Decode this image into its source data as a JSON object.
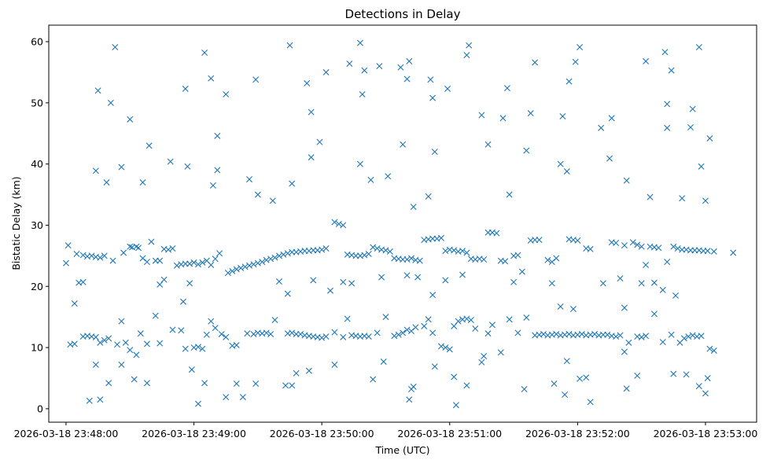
{
  "chart_data": {
    "type": "scatter",
    "title": "Detections in Delay",
    "xlabel": "Time (UTC)",
    "ylabel": "Bistatic Delay (km)",
    "x_unit": "seconds after 2026-03-18 23:48:00",
    "xlim": [
      -8.1,
      324
    ],
    "ylim": [
      -2.2,
      62.7
    ],
    "marker": "x",
    "color": "#1f77b4",
    "grid": false,
    "xticks": [
      {
        "value": 0,
        "label": "2026-03-18 23:48:00"
      },
      {
        "value": 60,
        "label": "2026-03-18 23:49:00"
      },
      {
        "value": 120,
        "label": "2026-03-18 23:50:00"
      },
      {
        "value": 180,
        "label": "2026-03-18 23:51:00"
      },
      {
        "value": 240,
        "label": "2026-03-18 23:52:00"
      },
      {
        "value": 300,
        "label": "2026-03-18 23:53:00"
      }
    ],
    "yticks": [
      {
        "value": 0,
        "label": "0"
      },
      {
        "value": 10,
        "label": "10"
      },
      {
        "value": 20,
        "label": "20"
      },
      {
        "value": 30,
        "label": "30"
      },
      {
        "value": 40,
        "label": "40"
      },
      {
        "value": 50,
        "label": "50"
      },
      {
        "value": 60,
        "label": "60"
      }
    ],
    "points": [
      [
        23,
        59.1
      ],
      [
        15,
        52
      ],
      [
        21,
        50
      ],
      [
        30,
        47.3
      ],
      [
        39,
        43
      ],
      [
        49,
        40.4
      ],
      [
        56,
        52.3
      ],
      [
        65,
        58.2
      ],
      [
        68,
        54
      ],
      [
        75,
        51.4
      ],
      [
        71,
        44.6
      ],
      [
        89,
        53.8
      ],
      [
        105,
        59.4
      ],
      [
        113,
        53.2
      ],
      [
        115,
        48.5
      ],
      [
        122,
        55
      ],
      [
        133,
        56.4
      ],
      [
        138,
        59.8
      ],
      [
        140,
        55.3
      ],
      [
        139,
        51.4
      ],
      [
        147,
        56
      ],
      [
        157,
        55.8
      ],
      [
        161,
        56.8
      ],
      [
        160,
        53.9
      ],
      [
        171,
        53.8
      ],
      [
        172,
        50.8
      ],
      [
        179,
        52.3
      ],
      [
        189,
        59.4
      ],
      [
        188,
        57.8
      ],
      [
        195,
        48
      ],
      [
        198,
        43.2
      ],
      [
        207,
        52.4
      ],
      [
        205,
        47.5
      ],
      [
        220,
        56.6
      ],
      [
        218,
        48.3
      ],
      [
        236,
        53.5
      ],
      [
        233,
        47.8
      ],
      [
        241,
        59.1
      ],
      [
        239,
        56.7
      ],
      [
        256,
        47.5
      ],
      [
        272,
        56.8
      ],
      [
        281,
        58.3
      ],
      [
        284,
        55.3
      ],
      [
        282,
        49.8
      ],
      [
        297,
        59.1
      ],
      [
        294,
        49
      ],
      [
        293,
        46
      ],
      [
        302,
        44.2
      ],
      [
        19,
        37
      ],
      [
        36,
        37
      ],
      [
        14,
        38.9
      ],
      [
        26,
        39.5
      ],
      [
        57,
        39.6
      ],
      [
        69,
        36.5
      ],
      [
        71,
        39
      ],
      [
        86,
        37.5
      ],
      [
        90,
        35
      ],
      [
        97,
        34
      ],
      [
        106,
        36.8
      ],
      [
        115,
        41.1
      ],
      [
        119,
        43.6
      ],
      [
        138,
        40
      ],
      [
        143,
        37.4
      ],
      [
        151,
        38
      ],
      [
        158,
        43.2
      ],
      [
        163,
        33
      ],
      [
        170,
        34.7
      ],
      [
        173,
        42
      ],
      [
        208,
        35
      ],
      [
        216,
        42.2
      ],
      [
        232,
        40
      ],
      [
        235,
        38.8
      ],
      [
        255,
        40.9
      ],
      [
        251,
        45.9
      ],
      [
        263,
        37.3
      ],
      [
        274,
        34.6
      ],
      [
        282,
        45.9
      ],
      [
        289,
        34.4
      ],
      [
        298,
        39.6
      ],
      [
        300,
        34
      ],
      [
        11,
        1.3
      ],
      [
        16,
        1.5
      ],
      [
        14,
        7.2
      ],
      [
        20,
        4.2
      ],
      [
        26,
        7.2
      ],
      [
        32,
        4.8
      ],
      [
        38,
        4.2
      ],
      [
        62,
        0.8
      ],
      [
        65,
        4.2
      ],
      [
        59,
        6.4
      ],
      [
        75,
        1.9
      ],
      [
        80,
        4.1
      ],
      [
        83,
        1.9
      ],
      [
        89,
        4.1
      ],
      [
        103,
        3.8
      ],
      [
        106,
        3.8
      ],
      [
        108,
        5.8
      ],
      [
        114,
        6.2
      ],
      [
        126,
        7.2
      ],
      [
        144,
        4.8
      ],
      [
        149,
        7.7
      ],
      [
        161,
        1.5
      ],
      [
        162,
        3.2
      ],
      [
        163,
        3.6
      ],
      [
        173,
        6.9
      ],
      [
        183,
        0.6
      ],
      [
        182,
        5.2
      ],
      [
        188,
        3.8
      ],
      [
        195,
        7.6
      ],
      [
        215,
        3.2
      ],
      [
        229,
        4.1
      ],
      [
        234,
        2.3
      ],
      [
        235,
        7.8
      ],
      [
        241,
        4.9
      ],
      [
        244,
        5.1
      ],
      [
        246,
        1.1
      ],
      [
        263,
        3.3
      ],
      [
        268,
        5.4
      ],
      [
        285,
        5.7
      ],
      [
        291,
        5.6
      ],
      [
        297,
        3.7
      ],
      [
        300,
        2.5
      ],
      [
        301,
        5
      ],
      [
        0,
        23.8
      ],
      [
        1,
        26.7
      ],
      [
        5,
        25.3
      ],
      [
        8,
        25.1
      ],
      [
        10,
        24.9
      ],
      [
        12,
        25.0
      ],
      [
        14,
        24.8
      ],
      [
        16,
        24.7
      ],
      [
        18,
        25.0
      ],
      [
        22,
        24.2
      ],
      [
        27,
        25.5
      ],
      [
        30,
        26.5
      ],
      [
        31,
        26.4
      ],
      [
        33,
        26.5
      ],
      [
        34,
        26.3
      ],
      [
        36,
        24.6
      ],
      [
        38,
        24.0
      ],
      [
        40,
        27.3
      ],
      [
        42,
        24.2
      ],
      [
        44,
        24.2
      ],
      [
        46,
        26.1
      ],
      [
        48,
        26.0
      ],
      [
        50,
        26.2
      ],
      [
        52,
        23.4
      ],
      [
        54,
        23.6
      ],
      [
        56,
        23.7
      ],
      [
        58,
        23.7
      ],
      [
        60,
        23.9
      ],
      [
        62,
        23.6
      ],
      [
        64,
        23.9
      ],
      [
        66,
        24.2
      ],
      [
        68,
        23.5
      ],
      [
        70,
        24.5
      ],
      [
        72,
        25.4
      ],
      [
        76,
        22.2
      ],
      [
        78,
        22.5
      ],
      [
        80,
        22.8
      ],
      [
        82,
        23.0
      ],
      [
        84,
        23.2
      ],
      [
        86,
        23.4
      ],
      [
        88,
        23.6
      ],
      [
        90,
        23.8
      ],
      [
        92,
        24.0
      ],
      [
        94,
        24.3
      ],
      [
        96,
        24.5
      ],
      [
        98,
        24.7
      ],
      [
        100,
        25.0
      ],
      [
        102,
        25.2
      ],
      [
        104,
        25.4
      ],
      [
        106,
        25.6
      ],
      [
        108,
        25.6
      ],
      [
        110,
        25.7
      ],
      [
        112,
        25.8
      ],
      [
        114,
        25.8
      ],
      [
        116,
        25.9
      ],
      [
        118,
        25.9
      ],
      [
        120,
        26.0
      ],
      [
        122,
        26.2
      ],
      [
        126,
        30.5
      ],
      [
        128,
        30.2
      ],
      [
        130,
        30.0
      ],
      [
        132,
        25.2
      ],
      [
        134,
        25.1
      ],
      [
        136,
        25.0
      ],
      [
        138,
        25.0
      ],
      [
        140,
        25.1
      ],
      [
        142,
        25.3
      ],
      [
        144,
        26.4
      ],
      [
        146,
        26.2
      ],
      [
        148,
        26.0
      ],
      [
        150,
        25.9
      ],
      [
        152,
        25.7
      ],
      [
        154,
        24.6
      ],
      [
        156,
        24.5
      ],
      [
        158,
        24.4
      ],
      [
        160,
        24.4
      ],
      [
        162,
        24.6
      ],
      [
        164,
        24.3
      ],
      [
        166,
        24.2
      ],
      [
        168,
        27.6
      ],
      [
        170,
        27.7
      ],
      [
        172,
        27.8
      ],
      [
        174,
        27.8
      ],
      [
        176,
        27.9
      ],
      [
        178,
        25.8
      ],
      [
        180,
        26.0
      ],
      [
        182,
        25.9
      ],
      [
        184,
        25.7
      ],
      [
        186,
        25.8
      ],
      [
        188,
        25.5
      ],
      [
        190,
        24.5
      ],
      [
        192,
        24.4
      ],
      [
        194,
        24.5
      ],
      [
        196,
        24.4
      ],
      [
        198,
        28.8
      ],
      [
        200,
        28.8
      ],
      [
        202,
        28.7
      ],
      [
        204,
        24.2
      ],
      [
        206,
        24.1
      ],
      [
        210,
        25.0
      ],
      [
        212,
        25.1
      ],
      [
        214,
        22.4
      ],
      [
        218,
        27.5
      ],
      [
        220,
        27.6
      ],
      [
        222,
        27.6
      ],
      [
        226,
        24.3
      ],
      [
        228,
        24.0
      ],
      [
        230,
        24.6
      ],
      [
        236,
        27.7
      ],
      [
        238,
        27.6
      ],
      [
        240,
        27.5
      ],
      [
        244,
        26.2
      ],
      [
        246,
        26.1
      ],
      [
        256,
        27.2
      ],
      [
        258,
        27.1
      ],
      [
        260,
        21.3
      ],
      [
        262,
        26.7
      ],
      [
        266,
        27.2
      ],
      [
        268,
        26.8
      ],
      [
        270,
        26.5
      ],
      [
        272,
        23.5
      ],
      [
        274,
        26.5
      ],
      [
        276,
        26.4
      ],
      [
        278,
        26.3
      ],
      [
        282,
        24.0
      ],
      [
        285,
        26.5
      ],
      [
        287,
        26.2
      ],
      [
        289,
        26.0
      ],
      [
        291,
        26.0
      ],
      [
        293,
        25.9
      ],
      [
        295,
        25.9
      ],
      [
        297,
        25.9
      ],
      [
        299,
        25.8
      ],
      [
        301,
        25.8
      ],
      [
        304,
        25.7
      ],
      [
        313,
        25.5
      ],
      [
        2,
        10.5
      ],
      [
        4,
        10.6
      ],
      [
        8,
        11.8
      ],
      [
        10,
        11.9
      ],
      [
        12,
        11.8
      ],
      [
        14,
        11.7
      ],
      [
        16,
        10.8
      ],
      [
        18,
        11.2
      ],
      [
        20,
        11.5
      ],
      [
        24,
        10.5
      ],
      [
        26,
        14.3
      ],
      [
        28,
        10.8
      ],
      [
        30,
        9.6
      ],
      [
        33,
        8.8
      ],
      [
        35,
        12.3
      ],
      [
        38,
        10.6
      ],
      [
        42,
        15.2
      ],
      [
        44,
        10.7
      ],
      [
        50,
        12.9
      ],
      [
        54,
        12.8
      ],
      [
        56,
        9.8
      ],
      [
        60,
        10.0
      ],
      [
        62,
        10.1
      ],
      [
        64,
        9.8
      ],
      [
        66,
        12.1
      ],
      [
        68,
        14.3
      ],
      [
        70,
        13.2
      ],
      [
        73,
        12.2
      ],
      [
        75,
        11.7
      ],
      [
        78,
        10.3
      ],
      [
        80,
        10.4
      ],
      [
        85,
        12.3
      ],
      [
        88,
        12.2
      ],
      [
        90,
        12.4
      ],
      [
        92,
        12.3
      ],
      [
        94,
        12.4
      ],
      [
        96,
        12.2
      ],
      [
        98,
        14.5
      ],
      [
        104,
        12.3
      ],
      [
        106,
        12.4
      ],
      [
        108,
        12.2
      ],
      [
        110,
        12.2
      ],
      [
        112,
        12.0
      ],
      [
        114,
        11.9
      ],
      [
        116,
        11.8
      ],
      [
        118,
        11.7
      ],
      [
        120,
        11.6
      ],
      [
        122,
        11.8
      ],
      [
        126,
        12.5
      ],
      [
        130,
        11.7
      ],
      [
        132,
        14.7
      ],
      [
        134,
        12.0
      ],
      [
        136,
        11.9
      ],
      [
        138,
        11.8
      ],
      [
        140,
        11.9
      ],
      [
        142,
        11.8
      ],
      [
        146,
        12.4
      ],
      [
        150,
        15.0
      ],
      [
        154,
        11.9
      ],
      [
        156,
        12.1
      ],
      [
        158,
        12.4
      ],
      [
        160,
        12.9
      ],
      [
        162,
        12.7
      ],
      [
        164,
        13.3
      ],
      [
        168,
        13.5
      ],
      [
        170,
        14.6
      ],
      [
        172,
        12.4
      ],
      [
        176,
        10.2
      ],
      [
        178,
        10.0
      ],
      [
        180,
        9.7
      ],
      [
        182,
        13.5
      ],
      [
        184,
        14.3
      ],
      [
        186,
        14.6
      ],
      [
        188,
        14.7
      ],
      [
        190,
        14.5
      ],
      [
        192,
        13.1
      ],
      [
        196,
        8.6
      ],
      [
        198,
        12.3
      ],
      [
        200,
        13.7
      ],
      [
        204,
        9.2
      ],
      [
        208,
        14.6
      ],
      [
        212,
        12.4
      ],
      [
        216,
        14.9
      ],
      [
        220,
        12.0
      ],
      [
        222,
        12.1
      ],
      [
        224,
        12.2
      ],
      [
        226,
        12.0
      ],
      [
        228,
        12.1
      ],
      [
        230,
        12.2
      ],
      [
        232,
        12.0
      ],
      [
        234,
        12.1
      ],
      [
        236,
        12.2
      ],
      [
        238,
        12.0
      ],
      [
        240,
        12.1
      ],
      [
        242,
        12.2
      ],
      [
        244,
        12.0
      ],
      [
        246,
        12.1
      ],
      [
        248,
        12.2
      ],
      [
        250,
        12.0
      ],
      [
        252,
        12.1
      ],
      [
        254,
        12.1
      ],
      [
        256,
        11.9
      ],
      [
        258,
        11.8
      ],
      [
        260,
        12.0
      ],
      [
        262,
        9.3
      ],
      [
        264,
        10.8
      ],
      [
        268,
        11.8
      ],
      [
        270,
        11.7
      ],
      [
        272,
        11.9
      ],
      [
        276,
        15.5
      ],
      [
        280,
        10.9
      ],
      [
        284,
        12.1
      ],
      [
        288,
        10.8
      ],
      [
        290,
        11.5
      ],
      [
        292,
        11.8
      ],
      [
        294,
        12.0
      ],
      [
        296,
        11.8
      ],
      [
        298,
        11.9
      ],
      [
        302,
        9.8
      ],
      [
        304,
        9.5
      ],
      [
        4,
        17.2
      ],
      [
        6,
        20.6
      ],
      [
        8,
        20.7
      ],
      [
        46,
        21.1
      ],
      [
        44,
        20.3
      ],
      [
        55,
        17.5
      ],
      [
        58,
        20.5
      ],
      [
        100,
        20.8
      ],
      [
        104,
        18.8
      ],
      [
        116,
        21.0
      ],
      [
        124,
        19.3
      ],
      [
        130,
        20.7
      ],
      [
        134,
        20.5
      ],
      [
        148,
        21.5
      ],
      [
        160,
        21.8
      ],
      [
        165,
        21.5
      ],
      [
        172,
        18.6
      ],
      [
        178,
        21.0
      ],
      [
        186,
        21.9
      ],
      [
        210,
        20.7
      ],
      [
        228,
        20.5
      ],
      [
        232,
        16.7
      ],
      [
        238,
        16.3
      ],
      [
        252,
        20.5
      ],
      [
        262,
        16.5
      ],
      [
        270,
        20.5
      ],
      [
        276,
        20.6
      ],
      [
        280,
        19.4
      ],
      [
        286,
        18.5
      ]
    ]
  }
}
